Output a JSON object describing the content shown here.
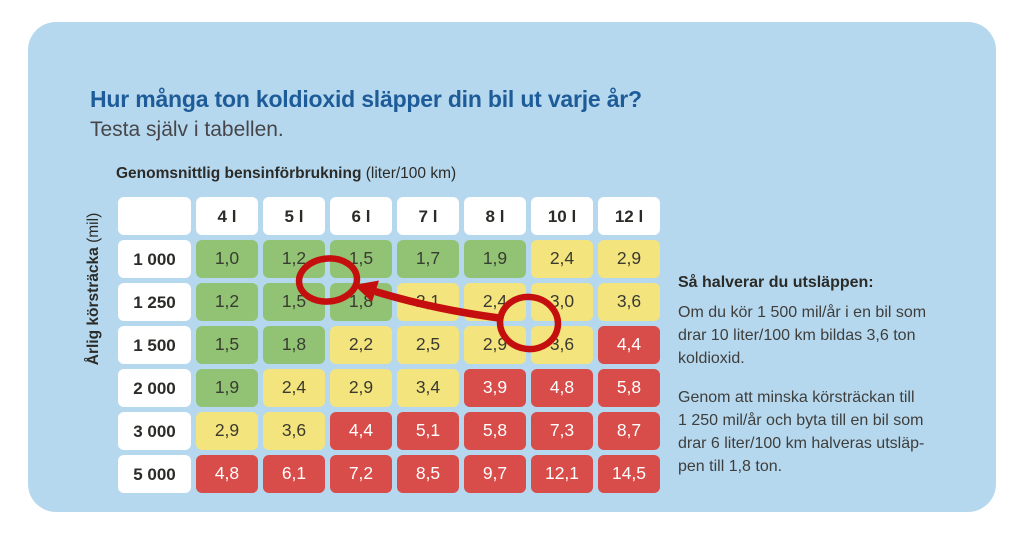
{
  "panel": {
    "title": "Hur många ton koldioxid släpper din bil ut varje år?",
    "subtitle": "Testa själv i tabellen."
  },
  "table": {
    "column_axis_label": "Genomsnittlig bensinförbrukning",
    "column_axis_unit": " (liter/100 km)",
    "row_axis_label": "Årlig körsträcka",
    "row_axis_unit": " (mil)",
    "column_headers": [
      "4 l",
      "5 l",
      "6 l",
      "7 l",
      "8 l",
      "10 l",
      "12 l"
    ],
    "rows": [
      {
        "label": "1 000",
        "cells": [
          {
            "text": "1,0",
            "level": "green"
          },
          {
            "text": "1,2",
            "level": "green"
          },
          {
            "text": "1,5",
            "level": "green"
          },
          {
            "text": "1,7",
            "level": "green"
          },
          {
            "text": "1,9",
            "level": "green"
          },
          {
            "text": "2,4",
            "level": "yellow"
          },
          {
            "text": "2,9",
            "level": "yellow"
          }
        ]
      },
      {
        "label": "1 250",
        "cells": [
          {
            "text": "1,2",
            "level": "green"
          },
          {
            "text": "1,5",
            "level": "green"
          },
          {
            "text": "1,8",
            "level": "green"
          },
          {
            "text": "2,1",
            "level": "yellow"
          },
          {
            "text": "2,4",
            "level": "yellow"
          },
          {
            "text": "3,0",
            "level": "yellow"
          },
          {
            "text": "3,6",
            "level": "yellow"
          }
        ]
      },
      {
        "label": "1 500",
        "cells": [
          {
            "text": "1,5",
            "level": "green"
          },
          {
            "text": "1,8",
            "level": "green"
          },
          {
            "text": "2,2",
            "level": "yellow"
          },
          {
            "text": "2,5",
            "level": "yellow"
          },
          {
            "text": "2,9",
            "level": "yellow"
          },
          {
            "text": "3,6",
            "level": "yellow"
          },
          {
            "text": "4,4",
            "level": "red"
          }
        ]
      },
      {
        "label": "2 000",
        "cells": [
          {
            "text": "1,9",
            "level": "green"
          },
          {
            "text": "2,4",
            "level": "yellow"
          },
          {
            "text": "2,9",
            "level": "yellow"
          },
          {
            "text": "3,4",
            "level": "yellow"
          },
          {
            "text": "3,9",
            "level": "red"
          },
          {
            "text": "4,8",
            "level": "red"
          },
          {
            "text": "5,8",
            "level": "red"
          }
        ]
      },
      {
        "label": "3 000",
        "cells": [
          {
            "text": "2,9",
            "level": "yellow"
          },
          {
            "text": "3,6",
            "level": "yellow"
          },
          {
            "text": "4,4",
            "level": "red"
          },
          {
            "text": "5,1",
            "level": "red"
          },
          {
            "text": "5,8",
            "level": "red"
          },
          {
            "text": "7,3",
            "level": "red"
          },
          {
            "text": "8,7",
            "level": "red"
          }
        ]
      },
      {
        "label": "5 000",
        "cells": [
          {
            "text": "4,8",
            "level": "red"
          },
          {
            "text": "6,1",
            "level": "red"
          },
          {
            "text": "7,2",
            "level": "red"
          },
          {
            "text": "8,5",
            "level": "red"
          },
          {
            "text": "9,7",
            "level": "red"
          },
          {
            "text": "12,1",
            "level": "red"
          },
          {
            "text": "14,5",
            "level": "red"
          }
        ]
      }
    ]
  },
  "annotation": {
    "color": "#c50f0f",
    "circled_cells": [
      {
        "row": "1 250",
        "column": "6 l",
        "value": "1,8"
      },
      {
        "row": "1 500",
        "column": "10 l",
        "value": "3,6"
      }
    ],
    "arrow": {
      "from_value": "3,6",
      "to_value": "1,8"
    }
  },
  "note": {
    "heading": "Så halverar du utsläppen:",
    "paragraph1": "Om du kör 1 500 mil/år i en bil som\ndrar 10 liter/100 km bildas 3,6 ton\nkoldioxid.",
    "paragraph2": "Genom att minska körsträckan till\n1 250 mil/år och byta till en bil som\ndrar 6 liter/100 km halveras utsläp-\npen till 1,8 ton."
  },
  "colors": {
    "panel": "#b6d8ee",
    "title-blue": "#1e5c99",
    "green": "#92c374",
    "yellow": "#f3e47e",
    "red": "#d84c4a",
    "annotation": "#c50f0f"
  },
  "chart_data": {
    "type": "heatmap",
    "title": "Hur många ton koldioxid släpper din bil ut varje år?",
    "subtitle": "Testa själv i tabellen.",
    "xlabel": "Genomsnittlig bensinförbrukning (liter/100 km)",
    "ylabel": "Årlig körsträcka (mil)",
    "columns_liters_per_100km": [
      4,
      5,
      6,
      7,
      8,
      10,
      12
    ],
    "rows_mil_per_year": [
      1000,
      1250,
      1500,
      2000,
      3000,
      5000
    ],
    "values_ton_co2": [
      [
        1.0,
        1.2,
        1.5,
        1.7,
        1.9,
        2.4,
        2.9
      ],
      [
        1.2,
        1.5,
        1.8,
        2.1,
        2.4,
        3.0,
        3.6
      ],
      [
        1.5,
        1.8,
        2.2,
        2.5,
        2.9,
        3.6,
        4.4
      ],
      [
        1.9,
        2.4,
        2.9,
        3.4,
        3.9,
        4.8,
        5.8
      ],
      [
        2.9,
        3.6,
        4.4,
        5.1,
        5.8,
        7.3,
        8.7
      ],
      [
        4.8,
        6.1,
        7.2,
        8.5,
        9.7,
        12.1,
        14.5
      ]
    ],
    "cell_color_levels": [
      [
        "green",
        "green",
        "green",
        "green",
        "green",
        "yellow",
        "yellow"
      ],
      [
        "green",
        "green",
        "green",
        "yellow",
        "yellow",
        "yellow",
        "yellow"
      ],
      [
        "green",
        "green",
        "yellow",
        "yellow",
        "yellow",
        "yellow",
        "red"
      ],
      [
        "green",
        "yellow",
        "yellow",
        "yellow",
        "red",
        "red",
        "red"
      ],
      [
        "yellow",
        "yellow",
        "red",
        "red",
        "red",
        "red",
        "red"
      ],
      [
        "red",
        "red",
        "red",
        "red",
        "red",
        "red",
        "red"
      ]
    ],
    "annotations": [
      {
        "type": "circle",
        "row": 1250,
        "column": 6,
        "value": 1.8
      },
      {
        "type": "circle",
        "row": 1500,
        "column": 10,
        "value": 3.6
      },
      {
        "type": "arrow",
        "from": {
          "row": 1500,
          "column": 10
        },
        "to": {
          "row": 1250,
          "column": 6
        }
      }
    ],
    "legend_position": "none",
    "grid": false
  }
}
